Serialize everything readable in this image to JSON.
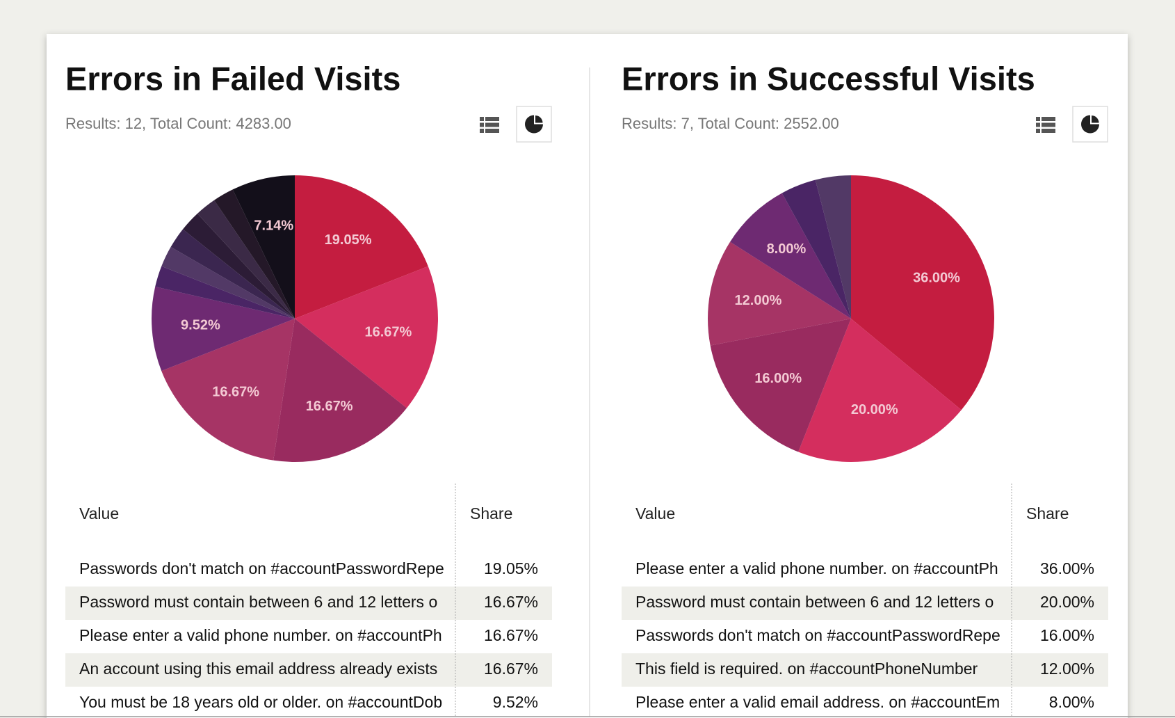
{
  "panels": [
    {
      "title": "Errors in Failed Visits",
      "subtitle": "Results: 12, Total Count: 4283.00",
      "chart": {
        "type": "pie",
        "values": [
          19.05,
          16.67,
          16.67,
          16.67,
          9.52,
          2.38,
          2.38,
          2.38,
          2.38,
          2.38,
          2.38,
          7.14
        ],
        "value_labels": [
          "19.05%",
          "16.67%",
          "16.67%",
          "16.67%",
          "9.52%",
          null,
          null,
          null,
          null,
          null,
          null,
          "7.14%"
        ],
        "colors": [
          "#c41d40",
          "#d42e5e",
          "#992b5f",
          "#a63465",
          "#6e2a72",
          "#4a2565",
          "#523966",
          "#3b2650",
          "#2c1c36",
          "#3b2a46",
          "#241828",
          "#130f1a"
        ]
      },
      "table": {
        "header": [
          "Value",
          "Share"
        ],
        "rows": [
          [
            "Passwords don't match on #accountPasswordRepe",
            "19.05%"
          ],
          [
            "Password must contain between 6 and 12 letters o",
            "16.67%"
          ],
          [
            "Please enter a valid phone number. on #accountPh",
            "16.67%"
          ],
          [
            "An account using this email address already exists",
            "16.67%"
          ],
          [
            "You must be 18 years old or older. on #accountDob",
            "9.52%"
          ]
        ]
      }
    },
    {
      "title": "Errors in Successful Visits",
      "subtitle": "Results: 7, Total Count: 2552.00",
      "chart": {
        "type": "pie",
        "values": [
          36,
          20,
          16,
          12,
          8,
          4,
          4
        ],
        "value_labels": [
          "36.00%",
          "20.00%",
          "16.00%",
          "12.00%",
          "8.00%",
          null,
          null
        ],
        "colors": [
          "#c41d40",
          "#d42e5e",
          "#992b5f",
          "#a63465",
          "#6e2a72",
          "#4a2565",
          "#523966"
        ]
      },
      "table": {
        "header": [
          "Value",
          "Share"
        ],
        "rows": [
          [
            "Please enter a valid phone number. on #accountPh",
            "36.00%"
          ],
          [
            "Password must contain between 6 and 12 letters o",
            "20.00%"
          ],
          [
            "Passwords don't match on #accountPasswordRepe",
            "16.00%"
          ],
          [
            "This field is required. on #accountPhoneNumber",
            "12.00%"
          ],
          [
            "Please enter a valid email address. on #accountEm",
            "8.00%"
          ]
        ]
      }
    }
  ]
}
